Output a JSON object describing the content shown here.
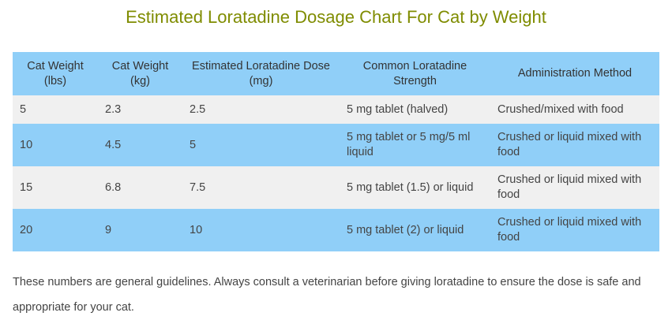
{
  "header": {
    "title": "Estimated Loratadine Dosage Chart For Cat by Weight"
  },
  "table": {
    "columns": [
      "Cat Weight (lbs)",
      "Cat Weight (kg)",
      "Estimated Loratadine Dose (mg)",
      "Common Loratadine Strength",
      "Administration Method"
    ],
    "rows": [
      [
        "5",
        "2.3",
        "2.5",
        "5 mg tablet (halved)",
        "Crushed/mixed with food"
      ],
      [
        "10",
        "4.5",
        "5",
        "5 mg tablet or 5 mg/5 ml liquid",
        "Crushed or liquid mixed with food"
      ],
      [
        "15",
        "6.8",
        "7.5",
        "5 mg tablet (1.5) or liquid",
        "Crushed or liquid mixed with food"
      ],
      [
        "20",
        "9",
        "10",
        "5 mg tablet (2) or liquid",
        "Crushed or liquid mixed with food"
      ]
    ]
  },
  "note": "These numbers are general guidelines. Always consult a veterinarian before giving loratadine to ensure the dose is safe and appropriate for your cat."
}
